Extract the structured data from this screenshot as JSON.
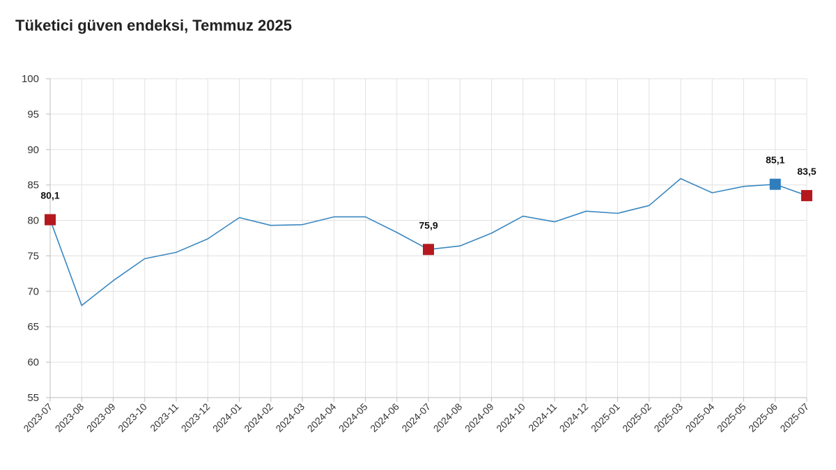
{
  "chart_data": {
    "type": "line",
    "title": "Tüketici güven endeksi, Temmuz 2025",
    "xlabel": "",
    "ylabel": "",
    "ylim": [
      55,
      100
    ],
    "yticks": [
      55,
      60,
      65,
      70,
      75,
      80,
      85,
      90,
      95,
      100
    ],
    "grid": true,
    "x": [
      "2023-07",
      "2023-08",
      "2023-09",
      "2023-10",
      "2023-11",
      "2023-12",
      "2024-01",
      "2024-02",
      "2024-03",
      "2024-04",
      "2024-05",
      "2024-06",
      "2024-07",
      "2024-08",
      "2024-09",
      "2024-10",
      "2024-11",
      "2024-12",
      "2025-01",
      "2025-02",
      "2025-03",
      "2025-04",
      "2025-05",
      "2025-06",
      "2025-07"
    ],
    "series": [
      {
        "values": [
          80.1,
          68.0,
          71.5,
          74.6,
          75.5,
          77.4,
          80.4,
          79.3,
          79.4,
          80.5,
          80.5,
          78.3,
          75.9,
          76.4,
          78.2,
          80.6,
          79.8,
          81.3,
          81.0,
          82.1,
          85.9,
          83.9,
          84.8,
          85.1,
          83.5
        ],
        "color": "#3a87c0"
      }
    ],
    "highlights": [
      {
        "index": 0,
        "label": "80,1",
        "color": "#b5181e"
      },
      {
        "index": 12,
        "label": "75,9",
        "color": "#b5181e"
      },
      {
        "index": 23,
        "label": "85,1",
        "color": "#2f7dbd"
      },
      {
        "index": 24,
        "label": "83,5",
        "color": "#b5181e"
      }
    ]
  }
}
